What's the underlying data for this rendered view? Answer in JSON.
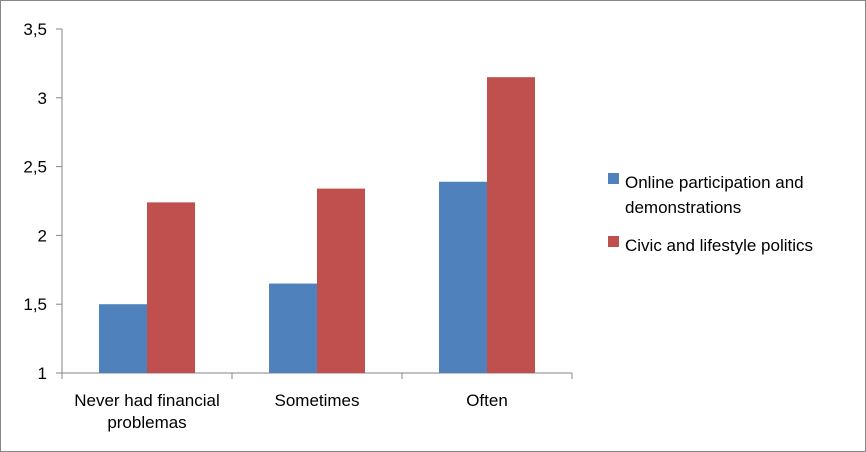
{
  "chart_data": {
    "type": "bar",
    "categories": [
      [
        "Never had financial",
        "problemas"
      ],
      [
        "Sometimes"
      ],
      [
        "Often"
      ]
    ],
    "series": [
      {
        "name": "Online participation and demonstrations",
        "name_lines": [
          "Online participation and",
          "demonstrations"
        ],
        "color": "#4F81BD",
        "values": [
          1.5,
          1.65,
          2.39
        ]
      },
      {
        "name": "Civic and lifestyle politics",
        "name_lines": [
          "Civic and lifestyle politics"
        ],
        "color": "#C0504D",
        "values": [
          2.24,
          2.34,
          3.15
        ]
      }
    ],
    "yticks": [
      "1",
      "1,5",
      "2",
      "2,5",
      "3",
      "3,5"
    ],
    "ylim": [
      1,
      3.5
    ],
    "grid": false,
    "legend_position": "right"
  }
}
